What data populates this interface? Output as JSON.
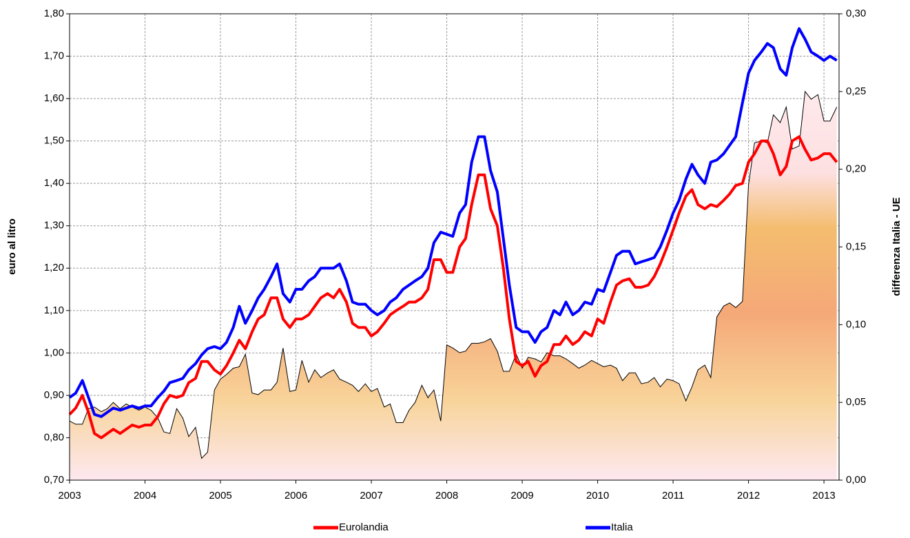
{
  "chart_data": {
    "type": "line",
    "y_label": "euro al litro",
    "y2_label": "differenza Italia - UE",
    "x": [
      2003,
      2003.08,
      2003.17,
      2003.25,
      2003.33,
      2003.42,
      2003.5,
      2003.58,
      2003.67,
      2003.75,
      2003.83,
      2003.92,
      2004,
      2004.08,
      2004.17,
      2004.25,
      2004.33,
      2004.42,
      2004.5,
      2004.58,
      2004.67,
      2004.75,
      2004.83,
      2004.92,
      2005,
      2005.08,
      2005.17,
      2005.25,
      2005.33,
      2005.42,
      2005.5,
      2005.58,
      2005.67,
      2005.75,
      2005.83,
      2005.92,
      2006,
      2006.08,
      2006.17,
      2006.25,
      2006.33,
      2006.42,
      2006.5,
      2006.58,
      2006.67,
      2006.75,
      2006.83,
      2006.92,
      2007,
      2007.08,
      2007.17,
      2007.25,
      2007.33,
      2007.42,
      2007.5,
      2007.58,
      2007.67,
      2007.75,
      2007.83,
      2007.92,
      2008,
      2008.08,
      2008.17,
      2008.25,
      2008.33,
      2008.42,
      2008.5,
      2008.58,
      2008.67,
      2008.75,
      2008.83,
      2008.92,
      2009,
      2009.08,
      2009.17,
      2009.25,
      2009.33,
      2009.42,
      2009.5,
      2009.58,
      2009.67,
      2009.75,
      2009.83,
      2009.92,
      2010,
      2010.08,
      2010.17,
      2010.25,
      2010.33,
      2010.42,
      2010.5,
      2010.58,
      2010.67,
      2010.75,
      2010.83,
      2010.92,
      2011,
      2011.08,
      2011.17,
      2011.25,
      2011.33,
      2011.42,
      2011.5,
      2011.58,
      2011.67,
      2011.75,
      2011.83,
      2011.92,
      2012,
      2012.08,
      2012.17,
      2012.25,
      2012.33,
      2012.42,
      2012.5,
      2012.58,
      2012.67,
      2012.75,
      2012.83,
      2012.92,
      2013,
      2013.08,
      2013.17
    ],
    "series": [
      {
        "name": "Eurolandia",
        "color": "#ff0000",
        "values": [
          0.855,
          0.87,
          0.9,
          0.86,
          0.81,
          0.8,
          0.81,
          0.82,
          0.81,
          0.82,
          0.83,
          0.825,
          0.83,
          0.83,
          0.85,
          0.88,
          0.9,
          0.895,
          0.9,
          0.93,
          0.94,
          0.98,
          0.98,
          0.96,
          0.95,
          0.97,
          1.0,
          1.03,
          1.01,
          1.05,
          1.08,
          1.09,
          1.13,
          1.13,
          1.08,
          1.06,
          1.08,
          1.08,
          1.09,
          1.11,
          1.13,
          1.14,
          1.13,
          1.15,
          1.12,
          1.07,
          1.06,
          1.06,
          1.04,
          1.05,
          1.07,
          1.09,
          1.1,
          1.11,
          1.12,
          1.12,
          1.13,
          1.15,
          1.22,
          1.22,
          1.19,
          1.19,
          1.25,
          1.27,
          1.35,
          1.42,
          1.42,
          1.34,
          1.3,
          1.2,
          1.08,
          0.98,
          0.97,
          0.98,
          0.945,
          0.97,
          0.98,
          1.02,
          1.02,
          1.04,
          1.02,
          1.03,
          1.05,
          1.04,
          1.08,
          1.07,
          1.12,
          1.16,
          1.17,
          1.175,
          1.155,
          1.155,
          1.16,
          1.18,
          1.21,
          1.25,
          1.29,
          1.33,
          1.37,
          1.385,
          1.35,
          1.34,
          1.35,
          1.345,
          1.36,
          1.375,
          1.395,
          1.4,
          1.45,
          1.47,
          1.5,
          1.5,
          1.47,
          1.42,
          1.44,
          1.5,
          1.51,
          1.48,
          1.455,
          1.46,
          1.47,
          1.47,
          1.45
        ]
      },
      {
        "name": "Italia",
        "color": "#0000ff",
        "values": [
          0.895,
          0.905,
          0.935,
          0.895,
          0.855,
          0.85,
          0.86,
          0.87,
          0.865,
          0.87,
          0.875,
          0.87,
          0.875,
          0.875,
          0.895,
          0.91,
          0.93,
          0.935,
          0.94,
          0.96,
          0.975,
          0.995,
          1.01,
          1.015,
          1.01,
          1.025,
          1.06,
          1.11,
          1.07,
          1.1,
          1.13,
          1.15,
          1.18,
          1.21,
          1.14,
          1.12,
          1.15,
          1.15,
          1.17,
          1.18,
          1.2,
          1.2,
          1.2,
          1.21,
          1.17,
          1.12,
          1.115,
          1.115,
          1.1,
          1.09,
          1.1,
          1.12,
          1.13,
          1.15,
          1.16,
          1.17,
          1.18,
          1.2,
          1.26,
          1.285,
          1.28,
          1.275,
          1.33,
          1.35,
          1.45,
          1.51,
          1.51,
          1.43,
          1.38,
          1.27,
          1.16,
          1.06,
          1.05,
          1.05,
          1.025,
          1.05,
          1.06,
          1.1,
          1.09,
          1.12,
          1.09,
          1.1,
          1.12,
          1.115,
          1.15,
          1.145,
          1.19,
          1.23,
          1.24,
          1.24,
          1.21,
          1.215,
          1.22,
          1.225,
          1.25,
          1.29,
          1.33,
          1.36,
          1.41,
          1.445,
          1.42,
          1.4,
          1.45,
          1.455,
          1.47,
          1.49,
          1.51,
          1.59,
          1.66,
          1.69,
          1.71,
          1.73,
          1.72,
          1.67,
          1.655,
          1.72,
          1.765,
          1.74,
          1.71,
          1.7,
          1.69,
          1.7,
          1.69
        ]
      },
      {
        "type": "area",
        "axis": "y2",
        "color": "#000000",
        "values": [
          0.038,
          0.036,
          0.036,
          0.046,
          0.047,
          0.044,
          0.046,
          0.05,
          0.046,
          0.049,
          0.047,
          0.045,
          0.047,
          0.045,
          0.04,
          0.031,
          0.03,
          0.046,
          0.04,
          0.028,
          0.034,
          0.014,
          0.018,
          0.058,
          0.065,
          0.068,
          0.072,
          0.073,
          0.081,
          0.056,
          0.055,
          0.058,
          0.058,
          0.063,
          0.085,
          0.057,
          0.058,
          0.077,
          0.063,
          0.071,
          0.066,
          0.069,
          0.071,
          0.065,
          0.063,
          0.061,
          0.057,
          0.062,
          0.057,
          0.059,
          0.047,
          0.049,
          0.037,
          0.037,
          0.045,
          0.05,
          0.061,
          0.053,
          0.058,
          0.038,
          0.087,
          0.085,
          0.082,
          0.083,
          0.088,
          0.088,
          0.089,
          0.091,
          0.083,
          0.07,
          0.07,
          0.081,
          0.072,
          0.079,
          0.078,
          0.076,
          0.082,
          0.08,
          0.08,
          0.078,
          0.075,
          0.072,
          0.074,
          0.077,
          0.075,
          0.073,
          0.074,
          0.072,
          0.064,
          0.069,
          0.069,
          0.062,
          0.063,
          0.066,
          0.06,
          0.065,
          0.064,
          0.062,
          0.051,
          0.06,
          0.071,
          0.074,
          0.066,
          0.105,
          0.112,
          0.114,
          0.111,
          0.115,
          0.19,
          0.217,
          0.218,
          0.217,
          0.235,
          0.23,
          0.24,
          0.213,
          0.215,
          0.25,
          0.245,
          0.248,
          0.231,
          0.231,
          0.24
        ]
      }
    ],
    "xlim": [
      2003,
      2013.2
    ],
    "xticks": [
      2003,
      2004,
      2005,
      2006,
      2007,
      2008,
      2009,
      2010,
      2011,
      2012,
      2013
    ],
    "ylim": [
      0.7,
      1.8
    ],
    "yticks": [
      {
        "value": 0.7,
        "label": "0,70"
      },
      {
        "value": 0.8,
        "label": "0,80"
      },
      {
        "value": 0.9,
        "label": "0,90"
      },
      {
        "value": 1.0,
        "label": "1,00"
      },
      {
        "value": 1.1,
        "label": "1,10"
      },
      {
        "value": 1.2,
        "label": "1,20"
      },
      {
        "value": 1.3,
        "label": "1,30"
      },
      {
        "value": 1.4,
        "label": "1,40"
      },
      {
        "value": 1.5,
        "label": "1,50"
      },
      {
        "value": 1.6,
        "label": "1,60"
      },
      {
        "value": 1.7,
        "label": "1,70"
      },
      {
        "value": 1.8,
        "label": "1,80"
      }
    ],
    "y2lim": [
      0,
      0.3
    ],
    "y2ticks": [
      {
        "value": 0,
        "label": "0,00"
      },
      {
        "value": 0.05,
        "label": "0,05"
      },
      {
        "value": 0.1,
        "label": "0,10"
      },
      {
        "value": 0.15,
        "label": "0,15"
      },
      {
        "value": 0.2,
        "label": "0,20"
      },
      {
        "value": 0.25,
        "label": "0,25"
      },
      {
        "value": 0.3,
        "label": "0,30"
      }
    ],
    "grid": true,
    "legend": "bottom"
  }
}
